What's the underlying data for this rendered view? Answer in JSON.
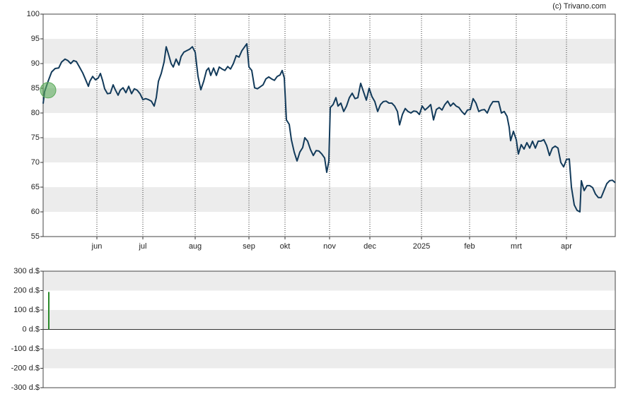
{
  "source": "(c) Trivano.com",
  "chart_data": [
    {
      "type": "line",
      "xlim": [
        0,
        809
      ],
      "xticks": [
        {
          "value": 76,
          "label": "jun"
        },
        {
          "value": 141,
          "label": "jul"
        },
        {
          "value": 215,
          "label": "aug"
        },
        {
          "value": 291,
          "label": "sep"
        },
        {
          "value": 342,
          "label": "okt"
        },
        {
          "value": 405,
          "label": "nov"
        },
        {
          "value": 462,
          "label": "dec"
        },
        {
          "value": 535,
          "label": "2025"
        },
        {
          "value": 603,
          "label": "feb"
        },
        {
          "value": 669,
          "label": "mrt"
        },
        {
          "value": 740,
          "label": "apr"
        }
      ],
      "ylim": [
        55,
        100
      ],
      "yticks": [
        55,
        60,
        65,
        70,
        75,
        80,
        85,
        90,
        95,
        100
      ],
      "grid": true,
      "markers": [
        {
          "x": 7,
          "y": 84.6,
          "color": "#5aaa5a"
        }
      ],
      "series": [
        {
          "color": "#123a5a",
          "x": [
            0,
            2,
            7,
            12,
            17,
            22,
            26,
            31,
            35,
            39,
            43,
            47,
            51,
            56,
            59,
            64,
            66,
            70,
            74,
            78,
            81,
            84,
            87,
            91,
            95,
            99,
            102,
            106,
            109,
            113,
            117,
            121,
            125,
            129,
            133,
            137,
            141,
            145,
            149,
            153,
            157,
            160,
            163,
            167,
            171,
            174,
            177,
            181,
            184,
            188,
            192,
            195,
            199,
            203,
            207,
            211,
            215,
            219,
            223,
            227,
            231,
            234,
            237,
            241,
            245,
            249,
            253,
            257,
            261,
            265,
            269,
            273,
            277,
            281,
            285,
            288,
            291,
            295,
            299,
            303,
            307,
            311,
            315,
            319,
            323,
            327,
            331,
            335,
            338,
            341,
            344,
            348,
            351,
            355,
            359,
            363,
            367,
            370,
            374,
            378,
            382,
            386,
            390,
            394,
            398,
            401,
            404,
            406,
            410,
            414,
            417,
            421,
            425,
            429,
            433,
            437,
            441,
            445,
            449,
            453,
            457,
            461,
            465,
            469,
            473,
            477,
            481,
            485,
            489,
            493,
            497,
            501,
            504,
            508,
            512,
            516,
            520,
            524,
            528,
            532,
            536,
            540,
            544,
            548,
            552,
            556,
            560,
            564,
            568,
            572,
            576,
            580,
            584,
            588,
            592,
            596,
            600,
            604,
            608,
            612,
            616,
            620,
            624,
            628,
            632,
            636,
            640,
            644,
            648,
            652,
            656,
            659,
            661,
            665,
            669,
            672,
            676,
            680,
            684,
            688,
            692,
            696,
            700,
            704,
            708,
            712,
            716,
            720,
            724,
            728,
            732,
            736,
            740,
            744,
            747,
            751,
            755,
            759,
            761,
            765,
            769,
            773,
            777,
            781,
            785,
            789,
            793,
            797,
            801,
            805,
            809
          ],
          "values": [
            81.9,
            84.3,
            86.4,
            88.3,
            89,
            89.1,
            90.3,
            90.9,
            90.6,
            90,
            90.6,
            90.4,
            89.4,
            88.1,
            87.1,
            85.4,
            86.4,
            87.4,
            86.7,
            87.1,
            88,
            86.6,
            84.9,
            83.9,
            84,
            85.7,
            84.7,
            83.6,
            84.6,
            85.1,
            84.1,
            85.4,
            83.9,
            84.9,
            84.6,
            83.9,
            82.7,
            82.9,
            82.7,
            82.4,
            81.4,
            83.1,
            86.4,
            88,
            90.3,
            93.4,
            92,
            90,
            89.3,
            90.9,
            89.7,
            91.4,
            92.3,
            92.6,
            92.9,
            93.4,
            92.3,
            87.4,
            84.7,
            86.4,
            88.6,
            89.1,
            87.6,
            89.1,
            87.6,
            89.3,
            88.9,
            88.6,
            89.4,
            88.9,
            90,
            91.6,
            91.3,
            92.6,
            93.4,
            94,
            89.3,
            88.6,
            85.1,
            84.9,
            85.3,
            85.7,
            86.9,
            87.3,
            86.9,
            86.6,
            87.4,
            87.7,
            88.6,
            87.1,
            78.6,
            77.7,
            74.6,
            72.1,
            70.3,
            72.1,
            73,
            75,
            74.3,
            72.6,
            71.4,
            72.4,
            72.3,
            71.7,
            70.9,
            68,
            70.3,
            81.1,
            81.7,
            83.1,
            81.4,
            82,
            80.3,
            81.4,
            83.1,
            84,
            82.9,
            83.1,
            86,
            84.3,
            82.6,
            85,
            83.3,
            82.3,
            80.3,
            81.7,
            82.3,
            82.4,
            82,
            82,
            81.4,
            80.3,
            77.6,
            79.7,
            80.9,
            80.3,
            80,
            80.4,
            80.3,
            79.7,
            81.4,
            80.6,
            81.1,
            81.7,
            78.6,
            80.7,
            81.1,
            80.6,
            81.7,
            82.4,
            81.4,
            82,
            81.4,
            81.1,
            80.3,
            79.7,
            80.6,
            80.7,
            82.9,
            82,
            80.3,
            80.6,
            80.7,
            80,
            81.4,
            82.3,
            82.3,
            82.3,
            80,
            80.3,
            79.3,
            77.1,
            74.4,
            76.3,
            74.6,
            71.7,
            73.6,
            72.7,
            74,
            72.9,
            74.3,
            72.9,
            74.3,
            74.3,
            74.6,
            73.4,
            71.4,
            72.9,
            73.3,
            72.9,
            70,
            69.1,
            70.6,
            70.7,
            65,
            61.4,
            60.3,
            60,
            66.3,
            64.3,
            65.3,
            65.3,
            64.9,
            63.6,
            62.9,
            62.9,
            64.3,
            65.7,
            66.3,
            66.4,
            65.9
          ]
        }
      ]
    },
    {
      "type": "bar",
      "xlim": [
        0,
        809
      ],
      "ylim": [
        -300,
        300
      ],
      "yticks": [
        {
          "value": 300,
          "label": "300 d.$"
        },
        {
          "value": 200,
          "label": "200 d.$"
        },
        {
          "value": 100,
          "label": "100 d.$"
        },
        {
          "value": 0,
          "label": "0 d.$"
        },
        {
          "value": -100,
          "label": "-100 d.$"
        },
        {
          "value": -200,
          "label": "-200 d.$"
        },
        {
          "value": -300,
          "label": "-300 d.$"
        }
      ],
      "grid": true,
      "color": "#2a8a2a",
      "x": [
        8
      ],
      "values": [
        193
      ]
    }
  ]
}
